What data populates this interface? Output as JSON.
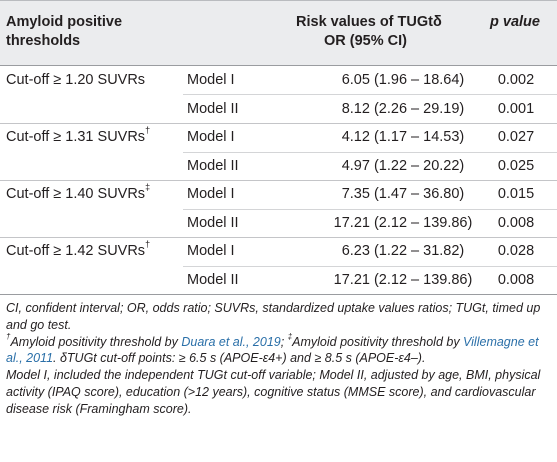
{
  "table": {
    "headers": {
      "threshold_line1": "Amyloid positive",
      "threshold_line2": "thresholds",
      "risk_line1": "Risk values of TUGtδ",
      "risk_line2": "OR (95% CI)",
      "p_value": "p value"
    },
    "rows": [
      {
        "threshold": "Cut-off ≥ 1.20 SUVRs",
        "mark": "",
        "model": "Model I",
        "risk": "6.05 (1.96 – 18.64)",
        "p": "0.002"
      },
      {
        "threshold": "",
        "mark": "",
        "model": "Model II",
        "risk": "8.12 (2.26 – 29.19)",
        "p": "0.001"
      },
      {
        "threshold": "Cut-off ≥ 1.31 SUVRs",
        "mark": "†",
        "model": "Model I",
        "risk": "4.12 (1.17 – 14.53)",
        "p": "0.027"
      },
      {
        "threshold": "",
        "mark": "",
        "model": "Model II",
        "risk": "4.97 (1.22 – 20.22)",
        "p": "0.025"
      },
      {
        "threshold": "Cut-off ≥ 1.40 SUVRs",
        "mark": "‡",
        "model": "Model I",
        "risk": "7.35 (1.47 – 36.80)",
        "p": "0.015"
      },
      {
        "threshold": "",
        "mark": "",
        "model": "Model II",
        "risk": "17.21 (2.12 – 139.86)",
        "p": "0.008"
      },
      {
        "threshold": "Cut-off ≥ 1.42 SUVRs",
        "mark": "†",
        "model": "Model I",
        "risk": "6.23 (1.22 – 31.82)",
        "p": "0.028"
      },
      {
        "threshold": "",
        "mark": "",
        "model": "Model II",
        "risk": "17.21 (2.12 – 139.86)",
        "p": "0.008"
      }
    ]
  },
  "footnotes": {
    "abbrev": "CI, confident interval; OR, odds ratio; SUVRs, standardized uptake values ratios; TUGt, timed up and go test.",
    "dagger_mark": "†",
    "dagger_text": "Amyloid positivity threshold by ",
    "dagger_ref": "Duara et al., 2019",
    "dagger_sep": "; ",
    "ddagger_mark": "‡",
    "ddagger_text": "Amyloid positivity threshold by ",
    "ddagger_ref": "Villemagne et al., 2011",
    "delta_text": ". δTUGt cut-off points: ≥ 6.5 s (APOE-ε4+) and ≥ 8.5 s (APOE-ε4–).",
    "models": "Model I, included the independent TUGt cut-off variable; Model II, adjusted by age, BMI, physical activity (IPAQ score), education (>12 years), cognitive status (MMSE score), and cardiovascular disease risk (Framingham score)."
  }
}
